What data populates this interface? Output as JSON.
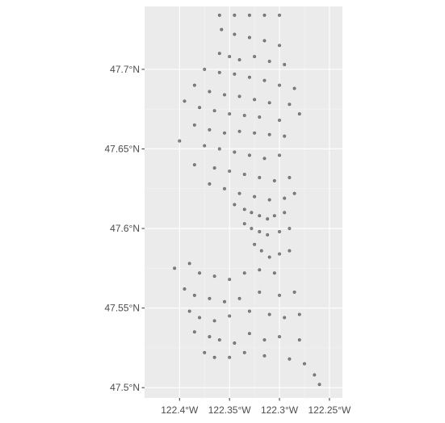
{
  "chart_data": {
    "type": "scatter",
    "title": "",
    "xlabel": "",
    "ylabel": "",
    "xlim": [
      -122.435,
      -122.237
    ],
    "ylim": [
      47.4935,
      47.7395
    ],
    "x_ticks": [
      {
        "value": -122.4,
        "label": "122.4°W"
      },
      {
        "value": -122.35,
        "label": "122.35°W"
      },
      {
        "value": -122.3,
        "label": "122.3°W"
      },
      {
        "value": -122.25,
        "label": "122.25°W"
      }
    ],
    "y_ticks": [
      {
        "value": 47.5,
        "label": "47.5°N"
      },
      {
        "value": 47.55,
        "label": "47.55°N"
      },
      {
        "value": 47.6,
        "label": "47.6°N"
      },
      {
        "value": 47.65,
        "label": "47.65°N"
      },
      {
        "value": 47.7,
        "label": "47.7°N"
      }
    ],
    "grid": true,
    "legend": "none",
    "colors": {
      "panel": "#ebebeb",
      "grid_major": "#ffffff",
      "grid_minor": "#f4f4f4",
      "point": "#000000",
      "tick_text": "#4d4d4d"
    },
    "point_alpha": 0.45,
    "series": [
      {
        "values": [
          [
            -122.36,
            47.734
          ],
          [
            -122.345,
            47.734
          ],
          [
            -122.33,
            47.734
          ],
          [
            -122.315,
            47.734
          ],
          [
            -122.3,
            47.734
          ],
          [
            -122.358,
            47.725
          ],
          [
            -122.345,
            47.722
          ],
          [
            -122.33,
            47.72
          ],
          [
            -122.315,
            47.718
          ],
          [
            -122.3,
            47.715
          ],
          [
            -122.36,
            47.71
          ],
          [
            -122.35,
            47.708
          ],
          [
            -122.34,
            47.706
          ],
          [
            -122.325,
            47.708
          ],
          [
            -122.31,
            47.705
          ],
          [
            -122.295,
            47.703
          ],
          [
            -122.375,
            47.7
          ],
          [
            -122.36,
            47.698
          ],
          [
            -122.345,
            47.697
          ],
          [
            -122.33,
            47.695
          ],
          [
            -122.315,
            47.693
          ],
          [
            -122.3,
            47.69
          ],
          [
            -122.285,
            47.688
          ],
          [
            -122.385,
            47.69
          ],
          [
            -122.37,
            47.686
          ],
          [
            -122.355,
            47.684
          ],
          [
            -122.34,
            47.683
          ],
          [
            -122.325,
            47.681
          ],
          [
            -122.31,
            47.679
          ],
          [
            -122.29,
            47.678
          ],
          [
            -122.395,
            47.68
          ],
          [
            -122.38,
            47.676
          ],
          [
            -122.365,
            47.674
          ],
          [
            -122.35,
            47.672
          ],
          [
            -122.335,
            47.671
          ],
          [
            -122.32,
            47.67
          ],
          [
            -122.3,
            47.668
          ],
          [
            -122.28,
            47.672
          ],
          [
            -122.385,
            47.665
          ],
          [
            -122.37,
            47.662
          ],
          [
            -122.355,
            47.66
          ],
          [
            -122.34,
            47.661
          ],
          [
            -122.325,
            47.66
          ],
          [
            -122.31,
            47.659
          ],
          [
            -122.295,
            47.658
          ],
          [
            -122.4,
            47.655
          ],
          [
            -122.375,
            47.652
          ],
          [
            -122.36,
            47.65
          ],
          [
            -122.345,
            47.648
          ],
          [
            -122.33,
            47.646
          ],
          [
            -122.315,
            47.644
          ],
          [
            -122.3,
            47.646
          ],
          [
            -122.385,
            47.64
          ],
          [
            -122.365,
            47.638
          ],
          [
            -122.35,
            47.636
          ],
          [
            -122.335,
            47.634
          ],
          [
            -122.32,
            47.632
          ],
          [
            -122.305,
            47.63
          ],
          [
            -122.29,
            47.632
          ],
          [
            -122.37,
            47.628
          ],
          [
            -122.355,
            47.625
          ],
          [
            -122.34,
            47.622
          ],
          [
            -122.325,
            47.62
          ],
          [
            -122.31,
            47.618
          ],
          [
            -122.295,
            47.619
          ],
          [
            -122.285,
            47.622
          ],
          [
            -122.345,
            47.615
          ],
          [
            -122.335,
            47.612
          ],
          [
            -122.328,
            47.61
          ],
          [
            -122.32,
            47.608
          ],
          [
            -122.312,
            47.606
          ],
          [
            -122.305,
            47.608
          ],
          [
            -122.295,
            47.61
          ],
          [
            -122.335,
            47.603
          ],
          [
            -122.328,
            47.6
          ],
          [
            -122.32,
            47.598
          ],
          [
            -122.312,
            47.596
          ],
          [
            -122.3,
            47.598
          ],
          [
            -122.29,
            47.6
          ],
          [
            -122.325,
            47.59
          ],
          [
            -122.318,
            47.586
          ],
          [
            -122.31,
            47.582
          ],
          [
            -122.3,
            47.584
          ],
          [
            -122.29,
            47.586
          ],
          [
            -122.405,
            47.575
          ],
          [
            -122.39,
            47.578
          ],
          [
            -122.38,
            47.572
          ],
          [
            -122.365,
            47.57
          ],
          [
            -122.35,
            47.568
          ],
          [
            -122.335,
            47.572
          ],
          [
            -122.32,
            47.574
          ],
          [
            -122.305,
            47.572
          ],
          [
            -122.395,
            47.562
          ],
          [
            -122.385,
            47.558
          ],
          [
            -122.37,
            47.556
          ],
          [
            -122.355,
            47.554
          ],
          [
            -122.34,
            47.556
          ],
          [
            -122.32,
            47.56
          ],
          [
            -122.3,
            47.558
          ],
          [
            -122.285,
            47.56
          ],
          [
            -122.39,
            47.548
          ],
          [
            -122.38,
            47.544
          ],
          [
            -122.365,
            47.542
          ],
          [
            -122.35,
            47.545
          ],
          [
            -122.33,
            47.548
          ],
          [
            -122.31,
            47.546
          ],
          [
            -122.295,
            47.544
          ],
          [
            -122.28,
            47.546
          ],
          [
            -122.385,
            47.535
          ],
          [
            -122.37,
            47.532
          ],
          [
            -122.36,
            47.53
          ],
          [
            -122.345,
            47.528
          ],
          [
            -122.33,
            47.534
          ],
          [
            -122.315,
            47.53
          ],
          [
            -122.3,
            47.532
          ],
          [
            -122.28,
            47.53
          ],
          [
            -122.375,
            47.522
          ],
          [
            -122.365,
            47.519
          ],
          [
            -122.35,
            47.519
          ],
          [
            -122.335,
            47.522
          ],
          [
            -122.315,
            47.52
          ],
          [
            -122.29,
            47.518
          ],
          [
            -122.275,
            47.515
          ],
          [
            -122.265,
            47.508
          ],
          [
            -122.26,
            47.502
          ]
        ]
      }
    ]
  }
}
